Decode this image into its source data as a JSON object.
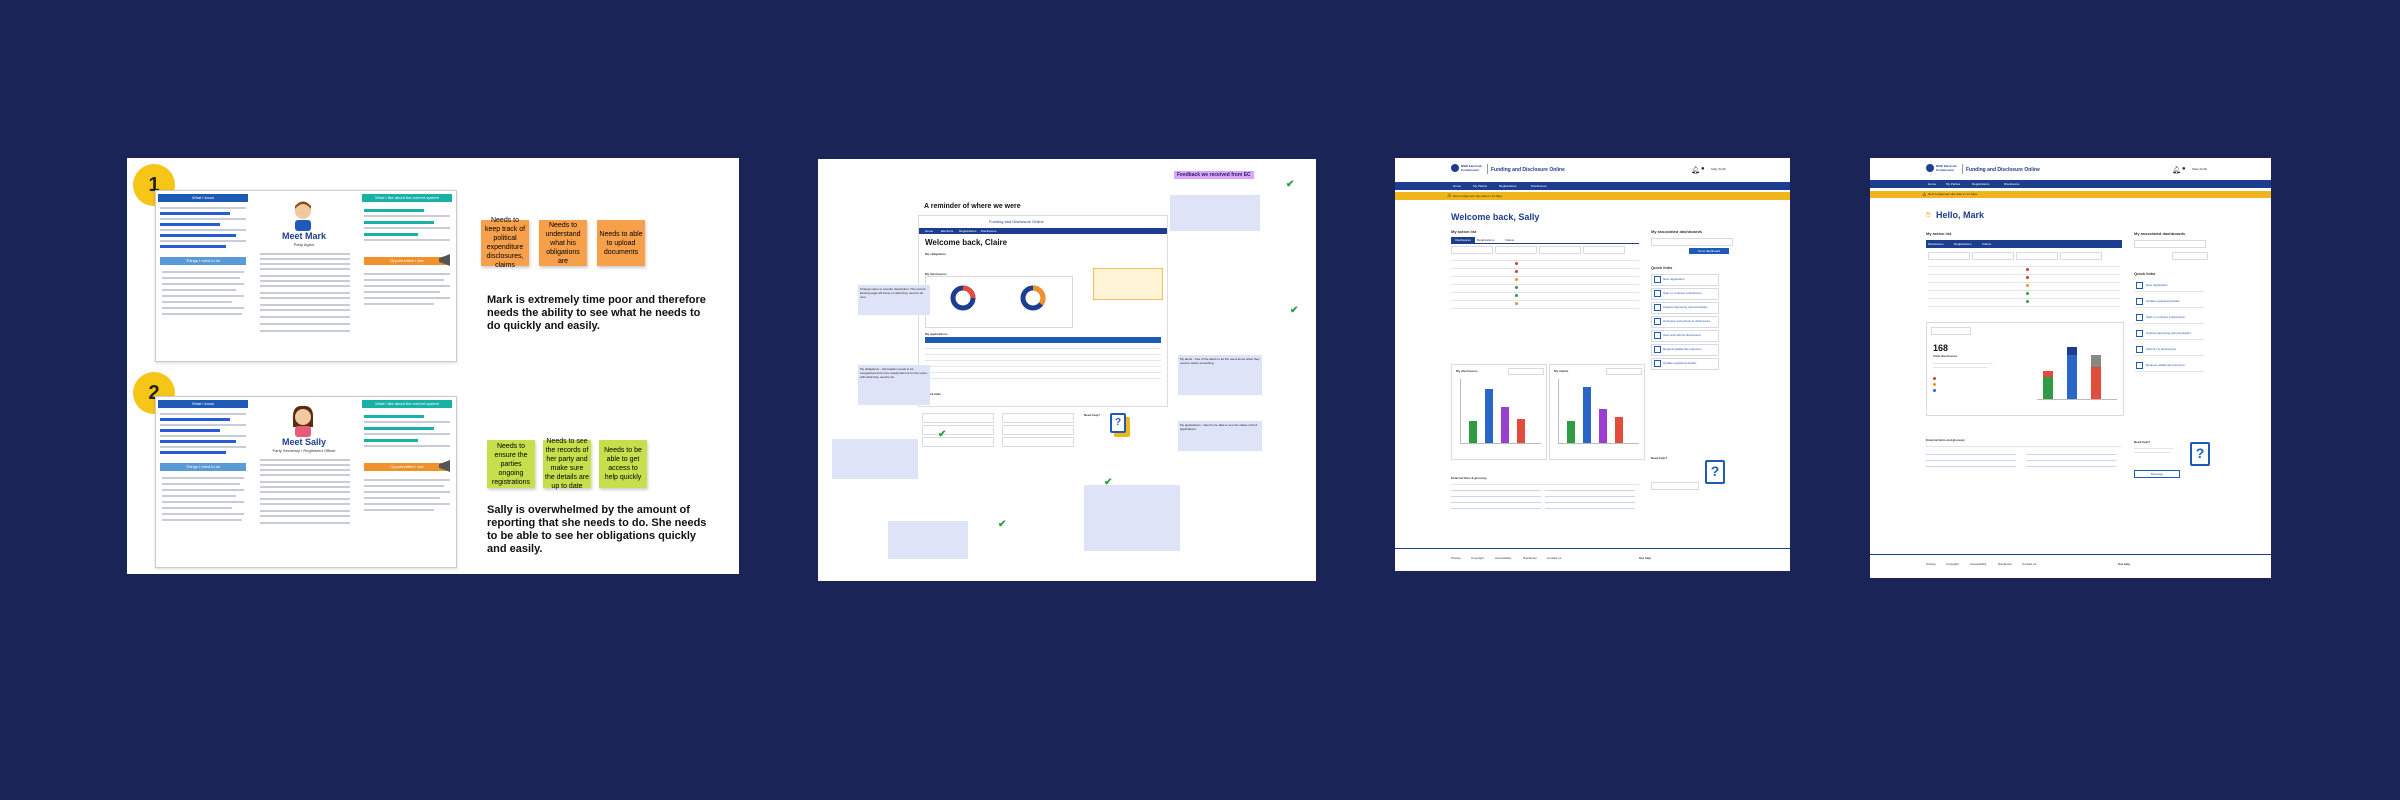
{
  "colors": {
    "background": "#1b2456",
    "navy": "#1d3d8f",
    "yellow": "#f5c518",
    "orange_sticky": "#f7a04b",
    "green_sticky": "#c6df4d",
    "teal": "#18b1a6",
    "blue_link": "#1d5bb6"
  },
  "board1": {
    "badge1": "1",
    "badge2": "2",
    "mark": {
      "col_left": "What I know",
      "name": "Meet Mark",
      "role": "Party Agent",
      "col_right": "What I like about the current system",
      "btn_left": "Things I need to do",
      "btn_right": "Opportunities I see"
    },
    "sally": {
      "col_left": "What I know",
      "name": "Meet Sally",
      "role": "Party Secretary / Registered Officer",
      "col_right": "What I like about the current system",
      "btn_left": "Things I need to do",
      "btn_right": "Opportunities I see"
    },
    "mark_stickies": [
      "Needs to keep track of political expenditure disclosures, claims",
      "Needs to understand what his obligations are",
      "Needs to able to upload documents"
    ],
    "mark_quote": "Mark is extremely time poor and therefore needs the ability to see what he needs to do quickly and easily.",
    "sally_stickies": [
      "Needs to ensure the parties ongoing registrations",
      "Needs to see the records of her party and make sure the details are up to date",
      "Needs to be able to get access to help quickly"
    ],
    "sally_quote": "Sally is overwhelmed by the amount of reporting that she needs to do. She needs to be able to see her obligations quickly and easily."
  },
  "board2": {
    "tag": "Feedback we received from EC",
    "reminder": "A reminder of where we were",
    "app_title": "Funding and Disclosure Online",
    "welcome": "Welcome back, Claire",
    "nav": [
      "Home",
      "Elections",
      "Registrations",
      "Disclosures"
    ],
    "sections": {
      "obligations": "My obligations",
      "disclosures": "My disclosures",
      "applications": "My applications",
      "quick_links": "Quick links",
      "need_help": "Need help?"
    },
    "note_top": "Change name to a better description. The current landing page will focus on what they need to do now.",
    "note_mid": "My obligations - Information needs to be reorganised and more clearly laid out for the users, with what they need to do.",
    "note_right": "My alerts - Use of the alerts to let the users know when they need to action something.",
    "note_bottom": "My applications - Need to be able to see the status of their applications."
  },
  "board3": {
    "brand": "NSW Electoral Commission",
    "app_title": "Funding and Disclosure Online",
    "nav": [
      "Home",
      "My Parties",
      "Registrations",
      "Disclosures"
    ],
    "alert": "Next Lodgement due date in 14 days",
    "user": "Sally Smith",
    "welcome": "Welcome back, Sally",
    "action_list": "My action list",
    "tabs": [
      "Disclosures",
      "Registrations",
      "Claims"
    ],
    "associated": "My associated dashboards",
    "switch_button": "Go to dashboard",
    "quick_links_title": "Quick links",
    "quick_links": [
      "New registration",
      "Start or continue a disclosure",
      "Upload supporting documentation",
      "Overview and submit to disclosures",
      "View and submit disclosures",
      "Request additional extension",
      "Update registered details"
    ],
    "chart1_title": "My disclosures",
    "chart2_title": "My claims",
    "external": "External links & glossary",
    "need_help": "Need help?",
    "footer": [
      "Privacy",
      "Copyright",
      "Accessibility",
      "Disclaimer",
      "Contact us"
    ],
    "footer_right": "Get help"
  },
  "board4": {
    "brand": "NSW Electoral Commission",
    "app_title": "Funding and Disclosure Online",
    "nav": [
      "Home",
      "My Parties",
      "Registrations",
      "Disclosures"
    ],
    "alert": "Next Lodgement due date in 14 days",
    "user": "Mark Smith",
    "welcome": "Hello, Mark",
    "action_list": "My action list",
    "tabs": [
      "Disclosures",
      "Registrations",
      "Claims"
    ],
    "associated": "My associated dashboards",
    "total": "168",
    "total_label": "Total disclosures",
    "quick_links_title": "Quick links",
    "quick_links": [
      "New registration",
      "Update registered details",
      "Start or continue a disclosure",
      "Upload supporting documentation",
      "Submit my disclosures",
      "Request additional extension"
    ],
    "external": "External links and glossary",
    "need_help": "Need help?",
    "message_button": "Message",
    "footer": [
      "Privacy",
      "Copyright",
      "Accessibility",
      "Disclaimer",
      "Contact us"
    ],
    "footer_right": "Get help"
  }
}
